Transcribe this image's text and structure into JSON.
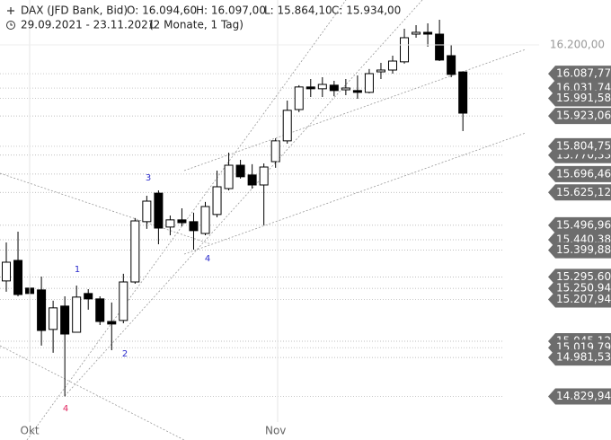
{
  "chart_data": {
    "type": "candlestick",
    "title": "DAX (JFD Bank, Bid)",
    "header_values": [
      "O: 16.094,60",
      "H: 16.097,00",
      "L: 15.864,10",
      "C: 15.934,00"
    ],
    "date_range": "29.09.2021 - 23.11.2021",
    "period": "(2 Monate, 1 Tag)",
    "open": [
      15280,
      15360,
      15252,
      15245,
      15091,
      15182,
      15080,
      15231,
      15210,
      15122,
      15126,
      15276,
      15511,
      15622,
      15490,
      15518,
      15511,
      15465,
      15539,
      15640,
      15731,
      15693,
      15654,
      15745,
      15826,
      15948,
      16036,
      16029,
      16043,
      16025,
      16022,
      16015,
      16095,
      16102,
      16134,
      16242,
      16249,
      16242,
      16158,
      16094.6
    ],
    "high": [
      15430,
      15472,
      15308,
      15297,
      15203,
      15220,
      15262,
      15248,
      15220,
      15196,
      15308,
      15525,
      15612,
      15633,
      15535,
      15563,
      15546,
      15588,
      15710,
      15780,
      15752,
      15735,
      15738,
      15836,
      15983,
      16043,
      16067,
      16074,
      16060,
      16067,
      16081,
      16106,
      16130,
      16158,
      16263,
      16277,
      16284,
      16298,
      16200,
      16097
    ],
    "low": [
      15238,
      15220,
      14986,
      15028,
      15000,
      14830,
      15080,
      15168,
      15108,
      15010,
      15115,
      15269,
      15483,
      15423,
      15458,
      15493,
      15402,
      15458,
      15528,
      15633,
      15679,
      15640,
      15497,
      15721,
      15815,
      15938,
      15997,
      15997,
      16000,
      16004,
      15990,
      16011,
      16067,
      16088,
      16127,
      16228,
      16193,
      16137,
      16074,
      15864.1
    ],
    "close": [
      15353,
      15227,
      15231,
      15087,
      15175,
      15073,
      15217,
      15210,
      15122,
      15112,
      15276,
      15514,
      15591,
      15486,
      15518,
      15507,
      15476,
      15570,
      15647,
      15731,
      15686,
      15654,
      15724,
      15826,
      15945,
      16036,
      16029,
      16046,
      16022,
      16032,
      16015,
      16088,
      16102,
      16137,
      16228,
      16249,
      16242,
      16141,
      16085,
      15934
    ],
    "x_labels": [
      {
        "value": 2,
        "label": "Okt"
      },
      {
        "value": 23,
        "label": "Nov"
      }
    ],
    "ylim": [
      14660,
      16375
    ],
    "yticks": [
      {
        "value": 16200,
        "label": "16.200,00"
      }
    ],
    "levels": [
      {
        "value": 16087.77,
        "label": "16.087,77"
      },
      {
        "value": 16031.74,
        "label": "16.031,74"
      },
      {
        "value": 15991.58,
        "label": "15.991,58"
      },
      {
        "value": 15923.06,
        "label": "15.923,06"
      },
      {
        "value": 15770.33,
        "label": "15.770,33"
      },
      {
        "value": 15804.75,
        "label": "15.804,75"
      },
      {
        "value": 15696.46,
        "label": "15.696,46"
      },
      {
        "value": 15625.12,
        "label": "15.625,12"
      },
      {
        "value": 15496.96,
        "label": "15.496,96"
      },
      {
        "value": 15440.38,
        "label": "15.440,38"
      },
      {
        "value": 15399.88,
        "label": "15.399,88"
      },
      {
        "value": 15295.6,
        "label": "15.295,60"
      },
      {
        "value": 15250.94,
        "label": "15.250,94"
      },
      {
        "value": 15207.94,
        "label": "15.207,94"
      },
      {
        "value": 15045.12,
        "label": "15.045,12"
      },
      {
        "value": 15019.79,
        "label": "15.019,79"
      },
      {
        "value": 14981.53,
        "label": "14.981,53"
      },
      {
        "value": 14829.94,
        "label": "14.829,94"
      }
    ],
    "annotations": [
      "1",
      "2",
      "3",
      "4",
      "4"
    ],
    "up_color": "#ffffff",
    "down_color": "#000000",
    "level_color": "#6d6d6d"
  }
}
